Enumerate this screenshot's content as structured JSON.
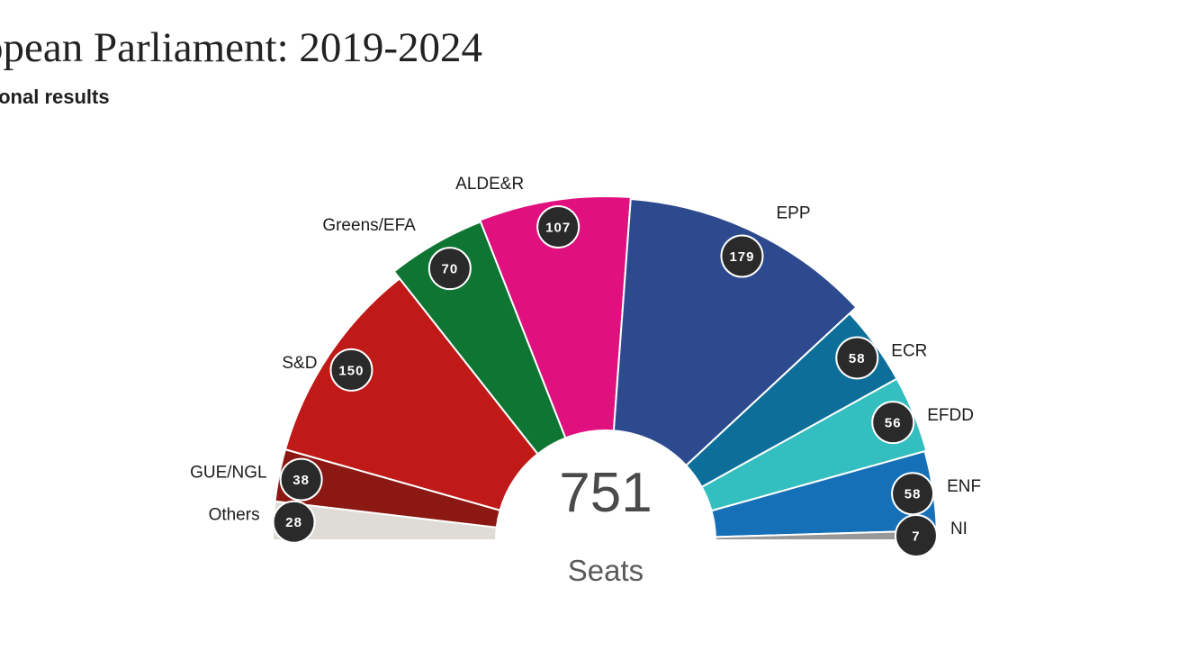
{
  "header": {
    "title": "opean Parliament: 2019-2024",
    "subtitle": "ional results"
  },
  "chart_data": {
    "type": "pie",
    "variant": "parliament-semicircle",
    "total": {
      "value": "751",
      "label": "Seats"
    },
    "series": [
      {
        "name": "Others",
        "value": 28,
        "color": "#dfdcd8"
      },
      {
        "name": "GUE/NGL",
        "value": 38,
        "color": "#8b1812"
      },
      {
        "name": "S&D",
        "value": 150,
        "color": "#c01a18"
      },
      {
        "name": "Greens/EFA",
        "value": 70,
        "color": "#0e7532"
      },
      {
        "name": "ALDE&R",
        "value": 107,
        "color": "#e0107f"
      },
      {
        "name": "EPP",
        "value": 179,
        "color": "#2d4a8e"
      },
      {
        "name": "ECR",
        "value": 58,
        "color": "#0d6f99"
      },
      {
        "name": "EFDD",
        "value": 56,
        "color": "#33bec0"
      },
      {
        "name": "ENF",
        "value": 58,
        "color": "#1670b8"
      },
      {
        "name": "NI",
        "value": 7,
        "color": "#999999"
      }
    ]
  }
}
